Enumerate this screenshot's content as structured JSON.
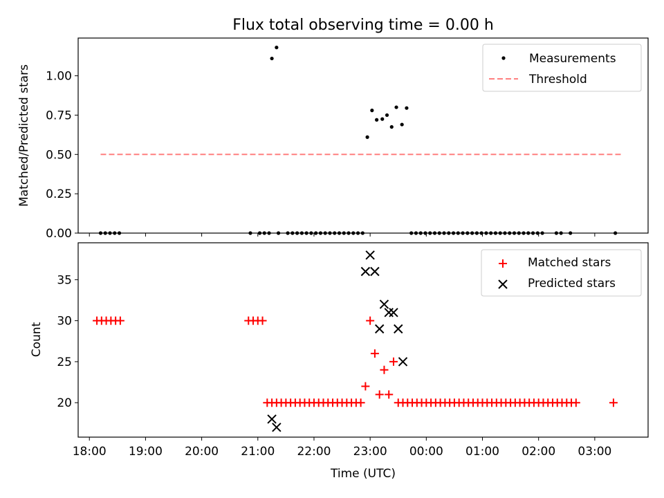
{
  "title": "Flux total observing time = 0.00 h",
  "chart_data": [
    {
      "type": "scatter",
      "title": "Flux total observing time = 0.00 h",
      "ylabel": "Matched/Predicted stars",
      "xlabel": "",
      "xlim": [
        "17:48",
        "03:57"
      ],
      "ylim": [
        0,
        1.24
      ],
      "yticks": [
        {
          "value": 0,
          "label": "0.00"
        },
        {
          "value": 0.25,
          "label": "0.25"
        },
        {
          "value": 0.5,
          "label": "0.50"
        },
        {
          "value": 0.75,
          "label": "0.75"
        },
        {
          "value": 1.0,
          "label": "1.00"
        }
      ],
      "grid": false,
      "legend_position": "top-right",
      "series": [
        {
          "name": "Measurements",
          "marker": "dot",
          "color": "#000000",
          "x": [
            "18:12",
            "18:17",
            "18:22",
            "18:27",
            "18:32",
            "20:52",
            "21:02",
            "21:07",
            "21:12",
            "21:22",
            "21:32",
            "21:37",
            "21:42",
            "21:47",
            "21:52",
            "21:57",
            "22:02",
            "22:07",
            "22:12",
            "22:17",
            "22:22",
            "22:27",
            "22:32",
            "22:37",
            "22:42",
            "22:47",
            "22:52",
            "21:15",
            "21:20",
            "22:57",
            "23:02",
            "23:07",
            "23:13",
            "23:18",
            "23:23",
            "23:28",
            "23:34",
            "23:39",
            "23:44",
            "23:49",
            "23:54",
            "23:59",
            "00:04",
            "00:09",
            "00:14",
            "00:19",
            "00:24",
            "00:29",
            "00:34",
            "00:39",
            "00:44",
            "00:49",
            "00:54",
            "00:59",
            "01:04",
            "01:09",
            "01:14",
            "01:19",
            "01:24",
            "01:29",
            "01:34",
            "01:39",
            "01:44",
            "01:49",
            "01:54",
            "01:59",
            "02:04",
            "02:19",
            "02:24",
            "02:34",
            "03:22"
          ],
          "y": [
            0,
            0,
            0,
            0,
            0,
            0,
            0,
            0,
            0,
            0,
            0,
            0,
            0,
            0,
            0,
            0,
            0,
            0,
            0,
            0,
            0,
            0,
            0,
            0,
            0,
            0,
            0,
            1.11,
            1.18,
            0.61,
            0.78,
            0.72,
            0.725,
            0.75,
            0.675,
            0.8,
            0.69,
            0.795,
            0,
            0,
            0,
            0,
            0,
            0,
            0,
            0,
            0,
            0,
            0,
            0,
            0,
            0,
            0,
            0,
            0,
            0,
            0,
            0,
            0,
            0,
            0,
            0,
            0,
            0,
            0,
            0,
            0,
            0,
            0,
            0,
            0
          ]
        },
        {
          "name": "Threshold",
          "style": "dashed",
          "color": "#ff7f7f",
          "x": [
            "18:12",
            "03:30"
          ],
          "y": [
            0.5,
            0.5
          ]
        }
      ]
    },
    {
      "type": "scatter",
      "title": "",
      "xlabel": "Time (UTC)",
      "ylabel": "Count",
      "xlim": [
        "17:48",
        "03:57"
      ],
      "ylim": [
        15.8,
        39.5
      ],
      "xticks": [
        "18:00",
        "19:00",
        "20:00",
        "21:00",
        "22:00",
        "23:00",
        "00:00",
        "01:00",
        "02:00",
        "03:00"
      ],
      "yticks": [
        {
          "value": 20,
          "label": "20"
        },
        {
          "value": 25,
          "label": "25"
        },
        {
          "value": 30,
          "label": "30"
        },
        {
          "value": 35,
          "label": "35"
        }
      ],
      "grid": false,
      "legend_position": "top-right",
      "series": [
        {
          "name": "Matched stars",
          "marker": "plus",
          "color": "#ff0000",
          "x": [
            "18:08",
            "18:13",
            "18:18",
            "18:23",
            "18:28",
            "18:33",
            "20:50",
            "20:55",
            "21:00",
            "21:05",
            "21:10",
            "21:15",
            "21:20",
            "21:25",
            "21:30",
            "21:35",
            "21:40",
            "21:45",
            "21:50",
            "21:55",
            "22:00",
            "22:05",
            "22:10",
            "22:15",
            "22:20",
            "22:25",
            "22:30",
            "22:35",
            "22:40",
            "22:45",
            "22:50",
            "22:55",
            "23:00",
            "23:05",
            "23:10",
            "23:15",
            "23:20",
            "23:25",
            "23:30",
            "23:35",
            "23:40",
            "23:45",
            "23:50",
            "23:55",
            "00:00",
            "00:05",
            "00:10",
            "00:15",
            "00:20",
            "00:25",
            "00:30",
            "00:35",
            "00:40",
            "00:45",
            "00:50",
            "00:55",
            "01:00",
            "01:05",
            "01:10",
            "01:15",
            "01:20",
            "01:25",
            "01:30",
            "01:35",
            "01:40",
            "01:45",
            "01:50",
            "01:55",
            "02:00",
            "02:05",
            "02:10",
            "02:15",
            "02:20",
            "02:25",
            "02:30",
            "02:35",
            "02:40",
            "03:20"
          ],
          "y": [
            30,
            30,
            30,
            30,
            30,
            30,
            30,
            30,
            30,
            30,
            20,
            20,
            20,
            20,
            20,
            20,
            20,
            20,
            20,
            20,
            20,
            20,
            20,
            20,
            20,
            20,
            20,
            20,
            20,
            20,
            20,
            22,
            30,
            26,
            21,
            24,
            21,
            25,
            20,
            20,
            20,
            20,
            20,
            20,
            20,
            20,
            20,
            20,
            20,
            20,
            20,
            20,
            20,
            20,
            20,
            20,
            20,
            20,
            20,
            20,
            20,
            20,
            20,
            20,
            20,
            20,
            20,
            20,
            20,
            20,
            20,
            20,
            20,
            20,
            20,
            20,
            20,
            20
          ]
        },
        {
          "name": "Predicted stars",
          "marker": "x",
          "color": "#000000",
          "x": [
            "21:15",
            "21:20",
            "22:55",
            "23:00",
            "23:05",
            "23:10",
            "23:15",
            "23:20",
            "23:25",
            "23:30",
            "23:35"
          ],
          "y": [
            18,
            17,
            36,
            38,
            36,
            29,
            32,
            31,
            31,
            29,
            25
          ]
        }
      ]
    }
  ]
}
